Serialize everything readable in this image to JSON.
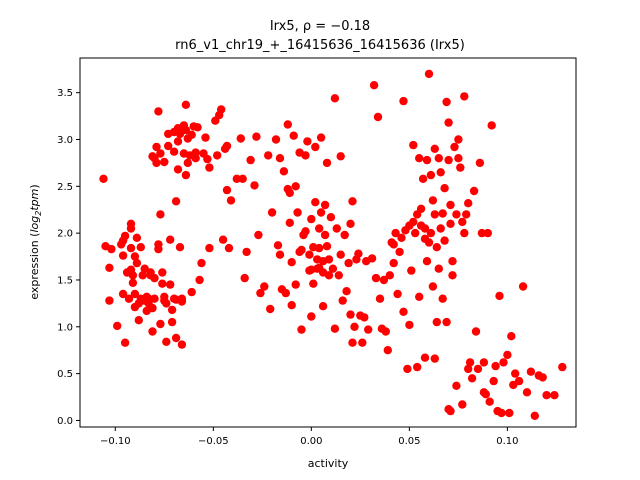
{
  "chart_data": {
    "type": "scatter",
    "title_gene": "Irx5",
    "title_rho_prefix": ", ρ = ",
    "title_rho_value": "−0.18",
    "subtitle": "rn6_v1_chr19_+_16415636_16415636 (Irx5)",
    "xlabel": "activity",
    "ylabel_prefix": "expression (",
    "ylabel_var": "log",
    "ylabel_sub": "2",
    "ylabel_var2": "tpm",
    "ylabel_suffix": ")",
    "xlim": [
      -0.118,
      0.135
    ],
    "ylim": [
      -0.07,
      3.87
    ],
    "xticks": [
      {
        "value": -0.1,
        "label": "−0.10"
      },
      {
        "value": -0.05,
        "label": "−0.05"
      },
      {
        "value": 0.0,
        "label": "0.00"
      },
      {
        "value": 0.05,
        "label": "0.05"
      },
      {
        "value": 0.1,
        "label": "0.10"
      }
    ],
    "yticks": [
      {
        "value": 0.0,
        "label": "0.0"
      },
      {
        "value": 0.5,
        "label": "0.5"
      },
      {
        "value": 1.0,
        "label": "1.0"
      },
      {
        "value": 1.5,
        "label": "1.5"
      },
      {
        "value": 2.0,
        "label": "2.0"
      },
      {
        "value": 2.5,
        "label": "2.5"
      },
      {
        "value": 3.0,
        "label": "3.0"
      },
      {
        "value": 3.5,
        "label": "3.5"
      }
    ],
    "grid": false,
    "marker_color": "#ff0000",
    "points": [
      [
        -0.106,
        2.58
      ],
      [
        -0.105,
        1.86
      ],
      [
        -0.103,
        1.63
      ],
      [
        -0.103,
        1.28
      ],
      [
        -0.102,
        1.83
      ],
      [
        -0.099,
        1.01
      ],
      [
        -0.097,
        1.88
      ],
      [
        -0.096,
        1.92
      ],
      [
        -0.096,
        1.76
      ],
      [
        -0.096,
        1.35
      ],
      [
        -0.095,
        0.83
      ],
      [
        -0.095,
        1.97
      ],
      [
        -0.094,
        1.58
      ],
      [
        -0.093,
        1.3
      ],
      [
        -0.092,
        1.84
      ],
      [
        -0.092,
        2.05
      ],
      [
        -0.092,
        2.1
      ],
      [
        -0.092,
        1.61
      ],
      [
        -0.091,
        1.55
      ],
      [
        -0.091,
        1.47
      ],
      [
        -0.09,
        1.21
      ],
      [
        -0.09,
        1.35
      ],
      [
        -0.09,
        1.75
      ],
      [
        -0.089,
        1.68
      ],
      [
        -0.089,
        1.95
      ],
      [
        -0.088,
        1.25
      ],
      [
        -0.088,
        1.07
      ],
      [
        -0.087,
        1.3
      ],
      [
        -0.087,
        1.85
      ],
      [
        -0.086,
        1.55
      ],
      [
        -0.085,
        1.28
      ],
      [
        -0.085,
        1.62
      ],
      [
        -0.084,
        1.32
      ],
      [
        -0.084,
        1.17
      ],
      [
        -0.083,
        1.3
      ],
      [
        -0.083,
        1.25
      ],
      [
        -0.082,
        1.58
      ],
      [
        -0.082,
        1.55
      ],
      [
        -0.081,
        2.82
      ],
      [
        -0.081,
        0.95
      ],
      [
        -0.081,
        1.2
      ],
      [
        -0.08,
        1.3
      ],
      [
        -0.08,
        2.8
      ],
      [
        -0.08,
        1.52
      ],
      [
        -0.079,
        2.92
      ],
      [
        -0.079,
        2.75
      ],
      [
        -0.078,
        3.3
      ],
      [
        -0.078,
        1.88
      ],
      [
        -0.078,
        1.83
      ],
      [
        -0.077,
        2.85
      ],
      [
        -0.077,
        2.2
      ],
      [
        -0.077,
        1.03
      ],
      [
        -0.076,
        1.58
      ],
      [
        -0.076,
        1.46
      ],
      [
        -0.075,
        2.76
      ],
      [
        -0.075,
        1.32
      ],
      [
        -0.075,
        1.28
      ],
      [
        -0.074,
        0.84
      ],
      [
        -0.074,
        1.25
      ],
      [
        -0.073,
        3.06
      ],
      [
        -0.073,
        2.93
      ],
      [
        -0.072,
        1.45
      ],
      [
        -0.072,
        1.93
      ],
      [
        -0.071,
        1.18
      ],
      [
        -0.071,
        1.05
      ],
      [
        -0.07,
        3.08
      ],
      [
        -0.07,
        2.87
      ],
      [
        -0.07,
        1.3
      ],
      [
        -0.069,
        2.34
      ],
      [
        -0.069,
        0.88
      ],
      [
        -0.069,
        1.29
      ],
      [
        -0.068,
        3.12
      ],
      [
        -0.068,
        2.98
      ],
      [
        -0.068,
        2.68
      ],
      [
        -0.067,
        3.06
      ],
      [
        -0.067,
        1.85
      ],
      [
        -0.066,
        1.3
      ],
      [
        -0.066,
        0.81
      ],
      [
        -0.066,
        1.27
      ],
      [
        -0.065,
        3.15
      ],
      [
        -0.065,
        2.85
      ],
      [
        -0.064,
        3.37
      ],
      [
        -0.064,
        3.1
      ],
      [
        -0.064,
        2.62
      ],
      [
        -0.063,
        3.01
      ],
      [
        -0.063,
        2.75
      ],
      [
        -0.062,
        2.83
      ],
      [
        -0.061,
        3.05
      ],
      [
        -0.061,
        1.37
      ],
      [
        -0.06,
        3.14
      ],
      [
        -0.059,
        2.8
      ],
      [
        -0.059,
        2.86
      ],
      [
        -0.058,
        3.13
      ],
      [
        -0.057,
        1.5
      ],
      [
        -0.056,
        1.68
      ],
      [
        -0.055,
        2.85
      ],
      [
        -0.054,
        3.02
      ],
      [
        -0.053,
        2.79
      ],
      [
        -0.052,
        2.7
      ],
      [
        -0.052,
        1.84
      ],
      [
        -0.049,
        3.2
      ],
      [
        -0.048,
        2.83
      ],
      [
        -0.047,
        3.26
      ],
      [
        -0.046,
        3.32
      ],
      [
        -0.045,
        1.93
      ],
      [
        -0.044,
        2.9
      ],
      [
        -0.043,
        2.93
      ],
      [
        -0.043,
        2.46
      ],
      [
        -0.042,
        1.84
      ],
      [
        -0.041,
        2.35
      ],
      [
        -0.038,
        2.58
      ],
      [
        -0.036,
        3.01
      ],
      [
        -0.035,
        2.58
      ],
      [
        -0.034,
        1.52
      ],
      [
        -0.033,
        1.8
      ],
      [
        -0.031,
        2.78
      ],
      [
        -0.029,
        2.51
      ],
      [
        -0.028,
        3.03
      ],
      [
        -0.027,
        1.98
      ],
      [
        -0.026,
        1.36
      ],
      [
        -0.024,
        1.43
      ],
      [
        -0.022,
        2.83
      ],
      [
        -0.021,
        1.19
      ],
      [
        -0.02,
        2.22
      ],
      [
        -0.018,
        3.0
      ],
      [
        -0.017,
        1.87
      ],
      [
        -0.016,
        1.77
      ],
      [
        -0.016,
        2.8
      ],
      [
        -0.015,
        1.4
      ],
      [
        -0.014,
        2.66
      ],
      [
        -0.013,
        1.36
      ],
      [
        -0.012,
        2.47
      ],
      [
        -0.012,
        3.16
      ],
      [
        -0.011,
        2.11
      ],
      [
        -0.011,
        2.43
      ],
      [
        -0.01,
        1.69
      ],
      [
        -0.01,
        1.23
      ],
      [
        -0.009,
        3.04
      ],
      [
        -0.008,
        1.45
      ],
      [
        -0.008,
        2.5
      ],
      [
        -0.007,
        2.22
      ],
      [
        -0.006,
        1.8
      ],
      [
        -0.006,
        2.86
      ],
      [
        -0.005,
        1.82
      ],
      [
        -0.005,
        0.97
      ],
      [
        -0.004,
        1.98
      ],
      [
        -0.003,
        2.83
      ],
      [
        -0.003,
        2.02
      ],
      [
        -0.002,
        2.98
      ],
      [
        -0.001,
        1.77
      ],
      [
        -0.001,
        1.6
      ],
      [
        0.0,
        2.15
      ],
      [
        0.0,
        1.61
      ],
      [
        0.0,
        1.11
      ],
      [
        0.001,
        1.85
      ],
      [
        0.001,
        1.46
      ],
      [
        0.002,
        2.92
      ],
      [
        0.002,
        2.33
      ],
      [
        0.003,
        1.72
      ],
      [
        0.003,
        1.62
      ],
      [
        0.004,
        2.05
      ],
      [
        0.004,
        1.84
      ],
      [
        0.004,
        1.63
      ],
      [
        0.005,
        3.02
      ],
      [
        0.005,
        2.22
      ],
      [
        0.006,
        1.7
      ],
      [
        0.006,
        1.58
      ],
      [
        0.006,
        1.22
      ],
      [
        0.007,
        2.3
      ],
      [
        0.007,
        1.98
      ],
      [
        0.008,
        2.75
      ],
      [
        0.008,
        1.86
      ],
      [
        0.009,
        1.72
      ],
      [
        0.009,
        1.55
      ],
      [
        0.01,
        2.17
      ],
      [
        0.011,
        1.62
      ],
      [
        0.012,
        3.44
      ],
      [
        0.012,
        0.98
      ],
      [
        0.013,
        2.05
      ],
      [
        0.014,
        1.55
      ],
      [
        0.015,
        1.77
      ],
      [
        0.015,
        2.82
      ],
      [
        0.016,
        1.28
      ],
      [
        0.017,
        1.98
      ],
      [
        0.018,
        1.38
      ],
      [
        0.019,
        1.68
      ],
      [
        0.02,
        1.13
      ],
      [
        0.02,
        2.1
      ],
      [
        0.021,
        0.83
      ],
      [
        0.021,
        2.34
      ],
      [
        0.022,
        1.0
      ],
      [
        0.023,
        1.72
      ],
      [
        0.024,
        1.78
      ],
      [
        0.025,
        1.12
      ],
      [
        0.026,
        0.83
      ],
      [
        0.027,
        1.1
      ],
      [
        0.028,
        1.7
      ],
      [
        0.029,
        0.97
      ],
      [
        0.031,
        1.73
      ],
      [
        0.032,
        3.58
      ],
      [
        0.033,
        1.52
      ],
      [
        0.034,
        3.24
      ],
      [
        0.035,
        1.3
      ],
      [
        0.036,
        0.98
      ],
      [
        0.037,
        1.5
      ],
      [
        0.038,
        0.95
      ],
      [
        0.039,
        0.75
      ],
      [
        0.04,
        1.55
      ],
      [
        0.041,
        1.9
      ],
      [
        0.042,
        1.88
      ],
      [
        0.042,
        1.68
      ],
      [
        0.043,
        2.0
      ],
      [
        0.044,
        1.35
      ],
      [
        0.045,
        1.8
      ],
      [
        0.046,
        1.95
      ],
      [
        0.047,
        3.41
      ],
      [
        0.047,
        1.16
      ],
      [
        0.048,
        2.03
      ],
      [
        0.049,
        0.55
      ],
      [
        0.05,
        2.08
      ],
      [
        0.05,
        1.02
      ],
      [
        0.051,
        1.6
      ],
      [
        0.052,
        2.12
      ],
      [
        0.052,
        2.94
      ],
      [
        0.053,
        2.0
      ],
      [
        0.054,
        2.2
      ],
      [
        0.055,
        2.8
      ],
      [
        0.055,
        1.32
      ],
      [
        0.056,
        2.08
      ],
      [
        0.056,
        2.26
      ],
      [
        0.057,
        2.58
      ],
      [
        0.058,
        1.94
      ],
      [
        0.058,
        2.05
      ],
      [
        0.059,
        1.7
      ],
      [
        0.059,
        2.78
      ],
      [
        0.06,
        3.7
      ],
      [
        0.06,
        1.9
      ],
      [
        0.061,
        2.62
      ],
      [
        0.061,
        2.0
      ],
      [
        0.062,
        2.35
      ],
      [
        0.062,
        1.43
      ],
      [
        0.063,
        2.9
      ],
      [
        0.063,
        2.2
      ],
      [
        0.064,
        1.05
      ],
      [
        0.064,
        1.85
      ],
      [
        0.065,
        2.8
      ],
      [
        0.065,
        1.62
      ],
      [
        0.066,
        2.65
      ],
      [
        0.066,
        2.05
      ],
      [
        0.067,
        1.3
      ],
      [
        0.067,
        2.21
      ],
      [
        0.068,
        2.48
      ],
      [
        0.068,
        1.92
      ],
      [
        0.069,
        3.4
      ],
      [
        0.069,
        1.05
      ],
      [
        0.07,
        3.18
      ],
      [
        0.07,
        2.78
      ],
      [
        0.071,
        2.3
      ],
      [
        0.071,
        2.1
      ],
      [
        0.072,
        1.7
      ],
      [
        0.072,
        1.55
      ],
      [
        0.073,
        2.92
      ],
      [
        0.074,
        2.2
      ],
      [
        0.074,
        0.37
      ],
      [
        0.075,
        3.0
      ],
      [
        0.075,
        2.8
      ],
      [
        0.076,
        2.7
      ],
      [
        0.077,
        2.12
      ],
      [
        0.078,
        3.46
      ],
      [
        0.078,
        2.0
      ],
      [
        0.079,
        2.2
      ],
      [
        0.08,
        2.32
      ],
      [
        0.081,
        0.62
      ],
      [
        0.082,
        0.45
      ],
      [
        0.083,
        2.45
      ],
      [
        0.084,
        0.95
      ],
      [
        0.085,
        0.55
      ],
      [
        0.086,
        2.75
      ],
      [
        0.087,
        2.0
      ],
      [
        0.088,
        0.62
      ],
      [
        0.089,
        0.28
      ],
      [
        0.09,
        2.0
      ],
      [
        0.091,
        0.2
      ],
      [
        0.092,
        3.15
      ],
      [
        0.093,
        0.42
      ],
      [
        0.094,
        0.58
      ],
      [
        0.095,
        0.1
      ],
      [
        0.096,
        1.33
      ],
      [
        0.098,
        0.62
      ],
      [
        0.1,
        0.7
      ],
      [
        0.101,
        0.08
      ],
      [
        0.102,
        0.9
      ],
      [
        0.103,
        0.38
      ],
      [
        0.104,
        0.5
      ],
      [
        0.106,
        0.42
      ],
      [
        0.108,
        1.43
      ],
      [
        0.11,
        0.3
      ],
      [
        0.112,
        0.52
      ],
      [
        0.114,
        0.05
      ],
      [
        0.116,
        0.48
      ],
      [
        0.118,
        0.46
      ],
      [
        0.12,
        0.27
      ],
      [
        0.124,
        0.27
      ],
      [
        0.128,
        0.57
      ],
      [
        0.063,
        0.66
      ],
      [
        0.058,
        0.67
      ],
      [
        0.07,
        0.12
      ],
      [
        0.071,
        0.1
      ],
      [
        0.077,
        0.17
      ],
      [
        0.08,
        0.55
      ],
      [
        0.088,
        0.3
      ],
      [
        0.097,
        0.08
      ],
      [
        0.054,
        0.57
      ]
    ]
  }
}
